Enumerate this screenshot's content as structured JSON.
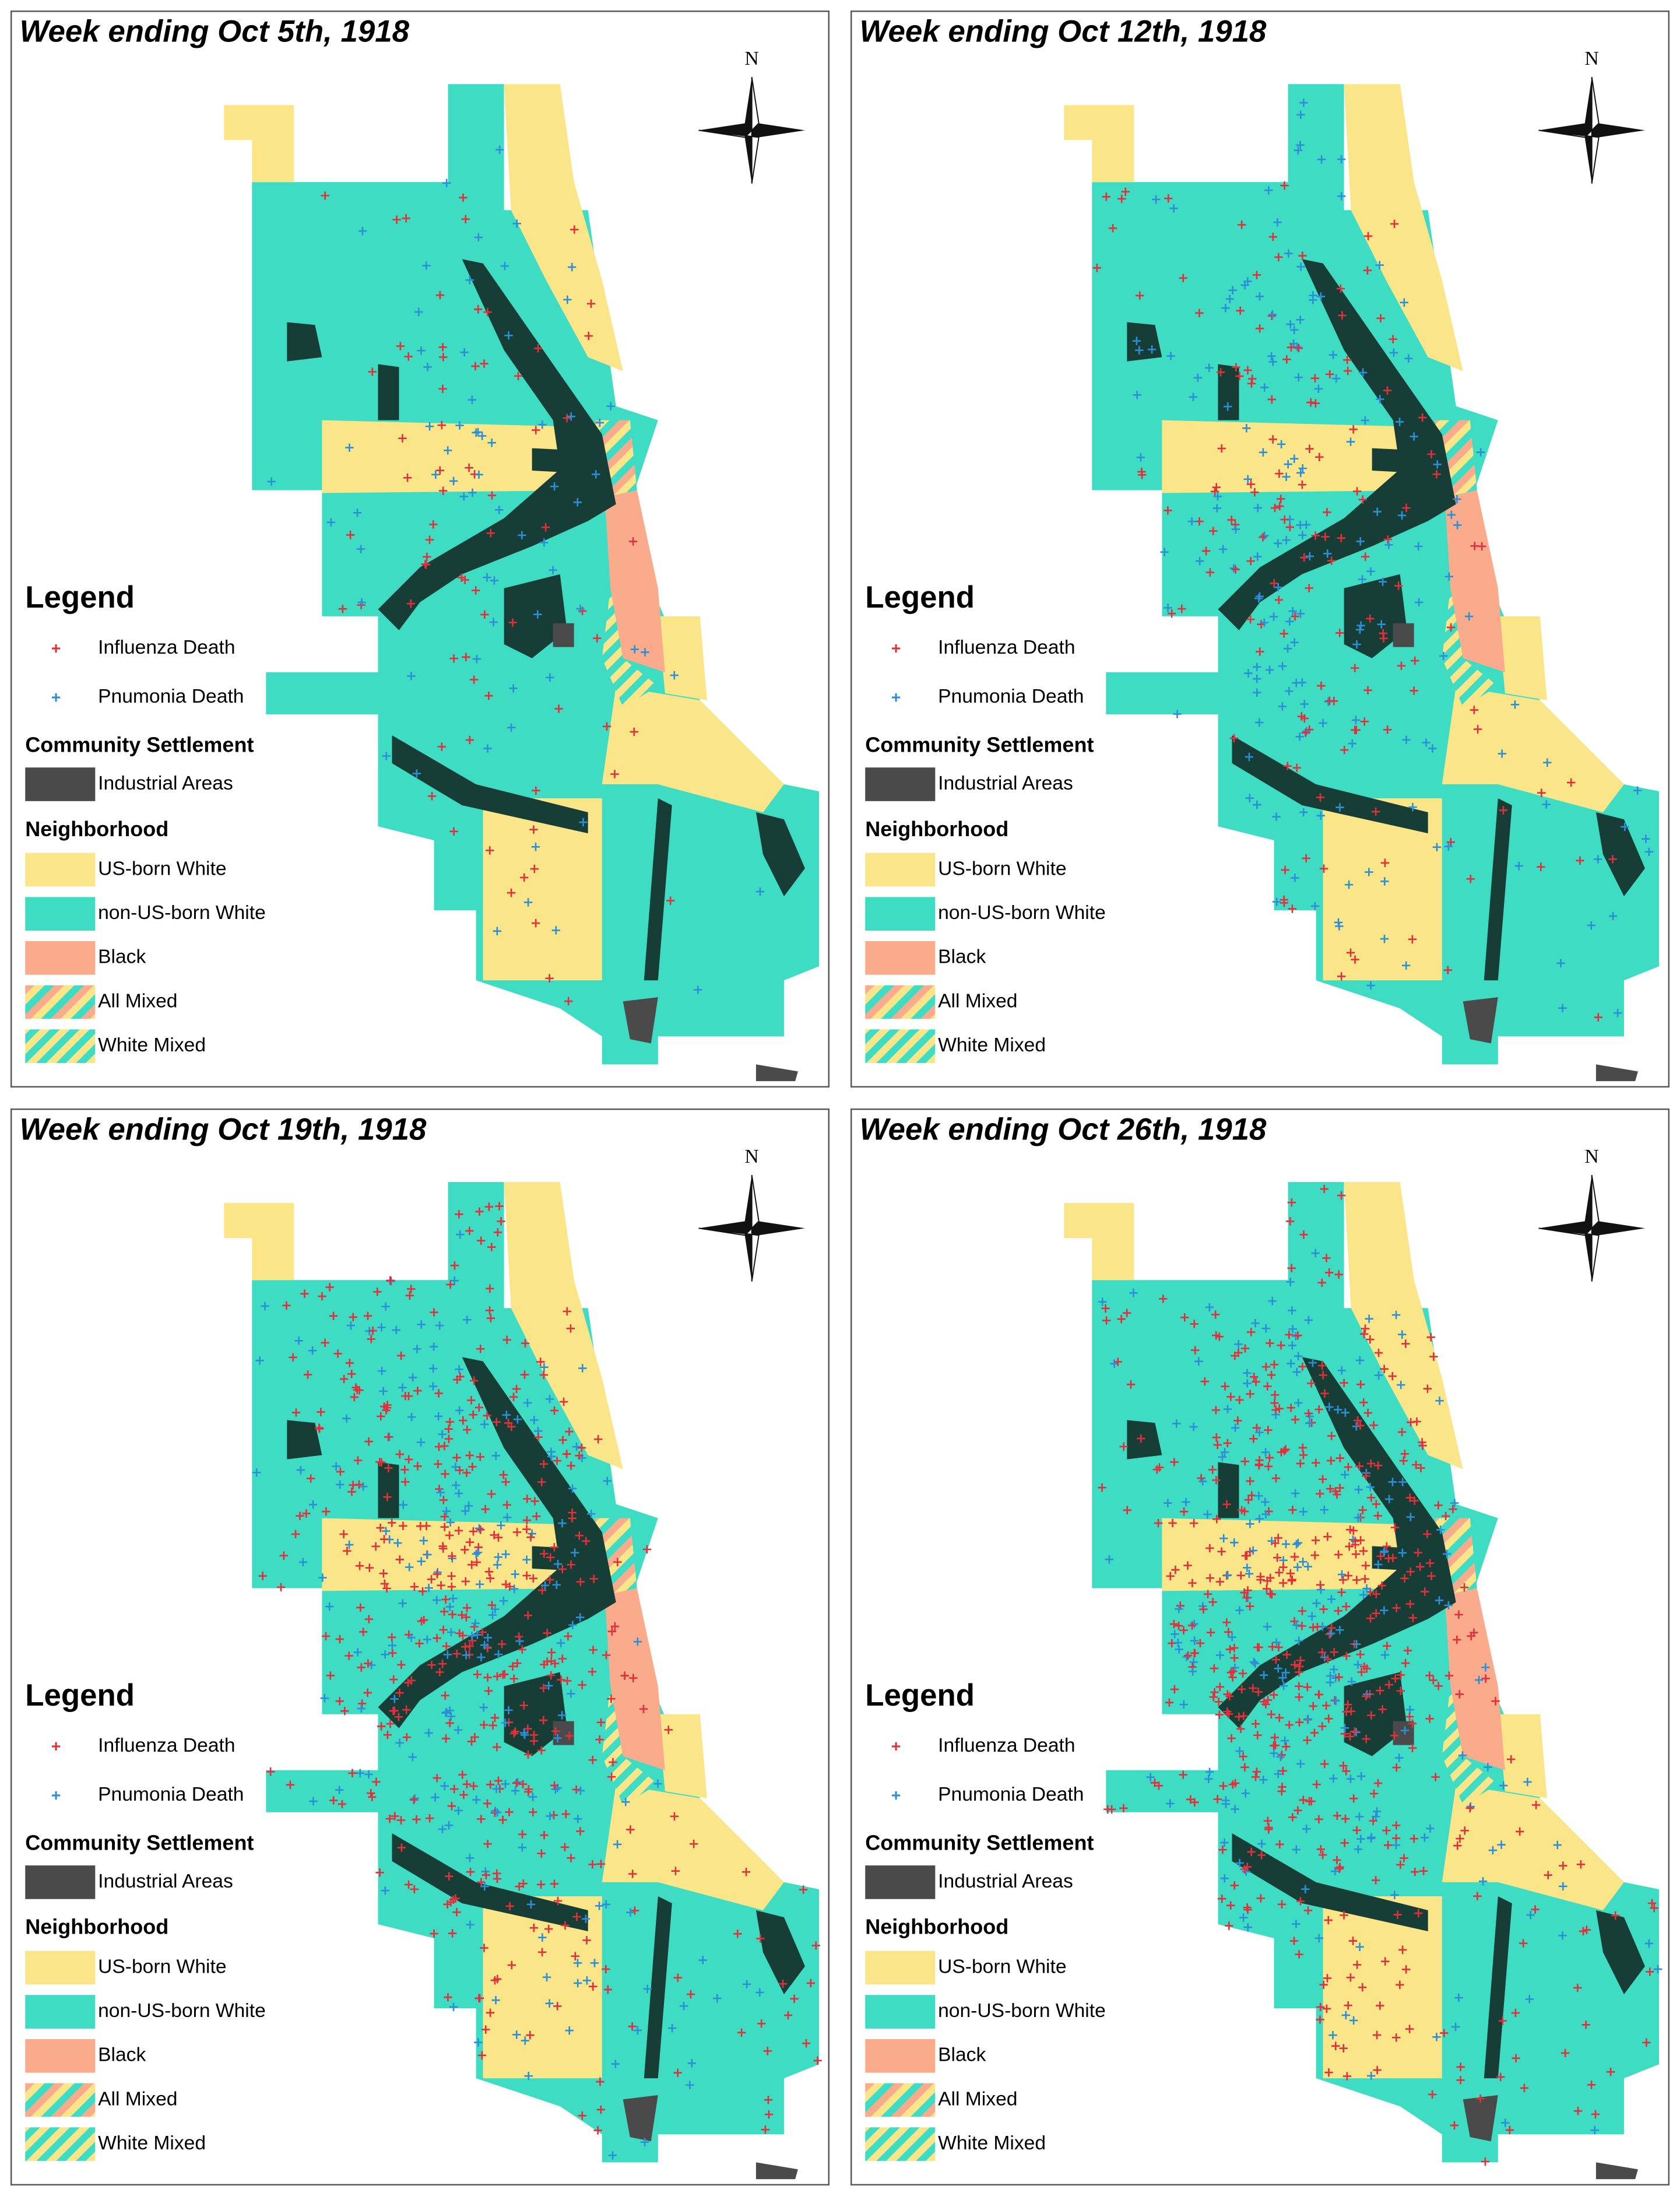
{
  "panels": [
    {
      "title": "Week ending Oct 5th, 1918"
    },
    {
      "title": "Week ending Oct 12th, 1918"
    },
    {
      "title": "Week ending Oct 19th, 1918"
    },
    {
      "title": "Week ending Oct 26th, 1918"
    }
  ],
  "compass": "N",
  "legend": {
    "title": "Legend",
    "points": [
      {
        "label": "Influenza Death",
        "color": "#e0303a"
      },
      {
        "label": "Pnumonia Death",
        "color": "#2b8fd8"
      }
    ],
    "settlement": {
      "title": "Community Settlement",
      "items": [
        {
          "label": "Industrial Areas",
          "color": "#4a4a4a"
        }
      ]
    },
    "neighborhood": {
      "title": "Neighborhood",
      "items": [
        {
          "label": "US-born White",
          "color": "#fae589"
        },
        {
          "label": "non-US-born White",
          "color": "#3fdcc4"
        },
        {
          "label": "Black",
          "color": "#f9ab8c"
        },
        {
          "label": "All Mixed",
          "colors": [
            "#f9ab8c",
            "#fae589",
            "#3fdcc4"
          ]
        },
        {
          "label": "White Mixed",
          "colors": [
            "#fae589",
            "#3fdcc4"
          ]
        }
      ]
    }
  }
}
